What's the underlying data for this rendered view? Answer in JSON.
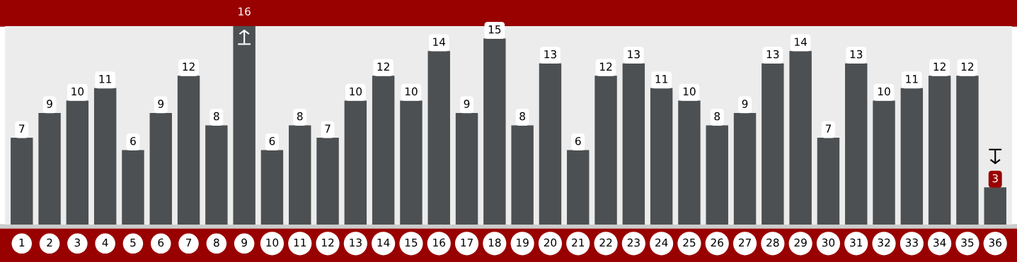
{
  "chart_data": {
    "type": "bar",
    "categories": [
      "1",
      "2",
      "3",
      "4",
      "5",
      "6",
      "7",
      "8",
      "9",
      "10",
      "11",
      "12",
      "13",
      "14",
      "15",
      "16",
      "17",
      "18",
      "19",
      "20",
      "21",
      "22",
      "23",
      "24",
      "25",
      "26",
      "27",
      "28",
      "29",
      "30",
      "31",
      "32",
      "33",
      "34",
      "35",
      "36"
    ],
    "values": [
      7,
      9,
      10,
      11,
      6,
      9,
      12,
      8,
      16,
      6,
      8,
      7,
      10,
      12,
      10,
      14,
      9,
      15,
      8,
      13,
      6,
      12,
      13,
      11,
      10,
      8,
      9,
      13,
      14,
      7,
      13,
      10,
      11,
      12,
      12,
      3
    ],
    "color": "#4d5052",
    "data_labels": true,
    "grid": false
  }
}
